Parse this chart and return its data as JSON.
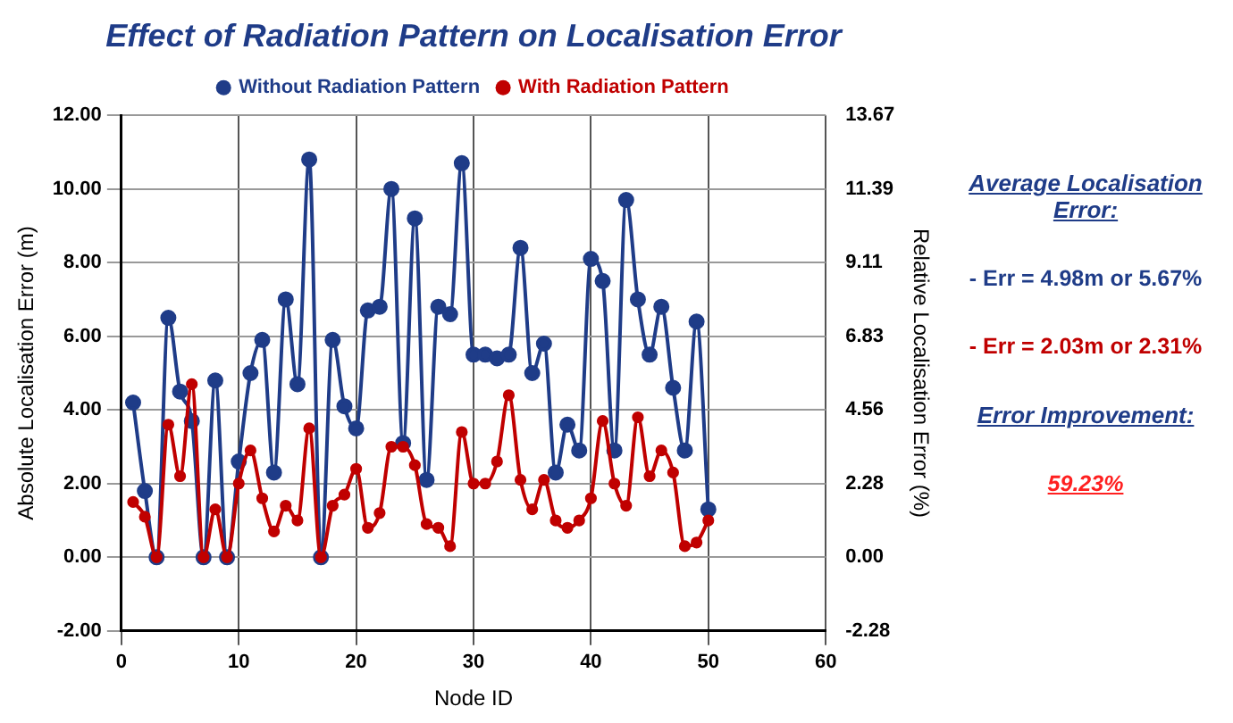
{
  "chart_data": {
    "type": "line",
    "title": "Effect of Radiation Pattern on Localisation Error",
    "xlabel": "Node ID",
    "ylabel": "Absolute Localisation Error (m)",
    "y2label": "Relative Localisation Error (%)",
    "x": [
      1,
      2,
      3,
      4,
      5,
      6,
      7,
      8,
      9,
      10,
      11,
      12,
      13,
      14,
      15,
      16,
      17,
      18,
      19,
      20,
      21,
      22,
      23,
      24,
      25,
      26,
      27,
      28,
      29,
      30,
      31,
      32,
      33,
      34,
      35,
      36,
      37,
      38,
      39,
      40,
      41,
      42,
      43,
      44,
      45,
      46,
      47,
      48,
      49,
      50
    ],
    "series": [
      {
        "name": "Without Radiation Pattern",
        "color": "#1f3c88",
        "values": [
          4.2,
          1.8,
          0,
          6.5,
          4.5,
          3.7,
          0,
          4.8,
          0,
          2.6,
          5.0,
          5.9,
          2.3,
          7.0,
          4.7,
          10.8,
          0,
          5.9,
          4.1,
          3.5,
          6.7,
          6.8,
          10.0,
          3.1,
          9.2,
          2.1,
          6.8,
          6.6,
          10.7,
          5.5,
          5.5,
          5.4,
          5.5,
          8.4,
          5.0,
          5.8,
          2.3,
          3.6,
          2.9,
          8.1,
          7.5,
          2.9,
          9.7,
          7.0,
          5.5,
          6.8,
          4.6,
          2.9,
          6.4,
          1.3
        ]
      },
      {
        "name": "With Radiation Pattern",
        "color": "#c00000",
        "values": [
          1.5,
          1.1,
          0,
          3.6,
          2.2,
          4.7,
          0,
          1.3,
          0,
          2.0,
          2.9,
          1.6,
          0.7,
          1.4,
          1.0,
          3.5,
          0,
          1.4,
          1.7,
          2.4,
          0.8,
          1.2,
          3.0,
          3.0,
          2.5,
          0.9,
          0.8,
          0.3,
          3.4,
          2.0,
          2.0,
          2.6,
          4.4,
          2.1,
          1.3,
          2.1,
          1.0,
          0.8,
          1.0,
          1.6,
          3.7,
          2.0,
          1.4,
          3.8,
          2.2,
          2.9,
          2.3,
          0.3,
          0.4,
          1.0
        ]
      }
    ],
    "xlim": [
      0,
      60
    ],
    "xticks": [
      0,
      10,
      20,
      30,
      40,
      50,
      60
    ],
    "ylim": [
      -2,
      12
    ],
    "yticks": [
      {
        "value": -2,
        "label": "-2.00"
      },
      {
        "value": 0,
        "label": "0.00"
      },
      {
        "value": 2,
        "label": "2.00"
      },
      {
        "value": 4,
        "label": "4.00"
      },
      {
        "value": 6,
        "label": "6.00"
      },
      {
        "value": 8,
        "label": "8.00"
      },
      {
        "value": 10,
        "label": "10.00"
      },
      {
        "value": 12,
        "label": "12.00"
      }
    ],
    "y2lim": [
      -2.28,
      13.67
    ],
    "y2ticks": [
      {
        "value": -2.28,
        "label": "-2.28"
      },
      {
        "value": 0,
        "label": "0.00"
      },
      {
        "value": 2.28,
        "label": "2.28"
      },
      {
        "value": 4.56,
        "label": "4.56"
      },
      {
        "value": 6.83,
        "label": "6.83"
      },
      {
        "value": 9.11,
        "label": "9.11"
      },
      {
        "value": 11.39,
        "label": "11.39"
      },
      {
        "value": 13.67,
        "label": "13.67"
      }
    ],
    "grid": true,
    "legend": "top",
    "marker": "circle",
    "line_style": "solid",
    "annotations": [
      "Average Localisation Error:",
      "- Err = 4.98m or 5.67%",
      "- Err = 2.03m or 2.31%",
      "Error Improvement:",
      "59.23%"
    ]
  }
}
